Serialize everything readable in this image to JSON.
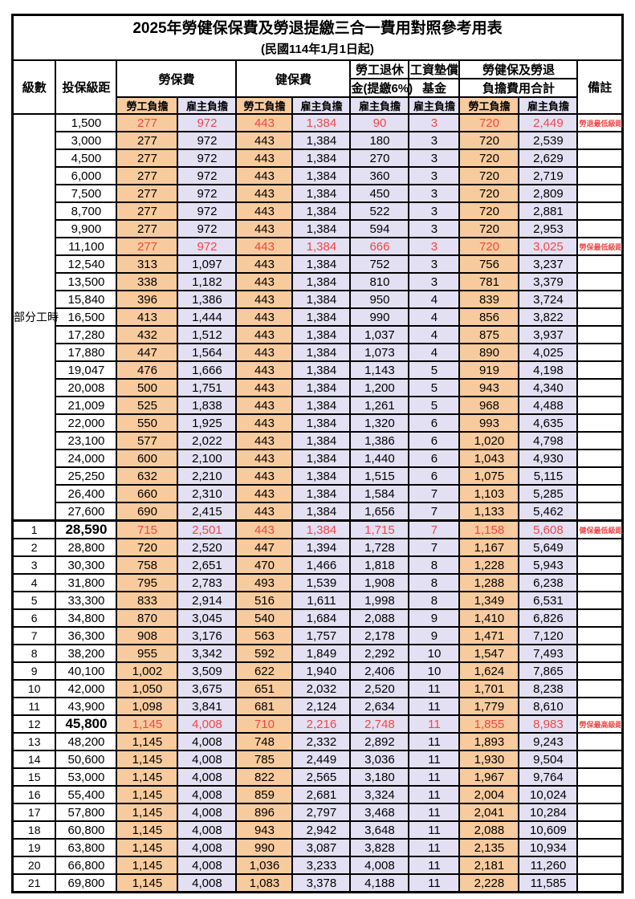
{
  "title": {
    "line1": "2025年勞健保保費及勞退提繳三合一費用對照參考用表",
    "line2": "(民國114年1月1日起)"
  },
  "colors": {
    "employee_column_bg": "#F7CB9E",
    "employer_column_bg": "#E2E0F2",
    "highlight_text": "#F24646",
    "border": "#000000"
  },
  "header": {
    "level": "級數",
    "salary_bracket": "投保級距",
    "labor_insurance_group": "勞保費",
    "health_insurance_group": "健保費",
    "pension_line1": "勞工退休",
    "pension_line2": "金(提繳6%)",
    "wage_fund_line1": "工資墊償",
    "wage_fund_line2": "基金",
    "total_line1": "勞健保及勞退",
    "total_line2": "負擔費用合計",
    "employee_share": "勞工負擔",
    "employer_share": "雇主負擔",
    "remarks": "備註"
  },
  "part_time_label": "部分工時",
  "part_time_rowspan": 23,
  "rows": [
    {
      "level": "",
      "salary": "1,500",
      "cells": [
        "277",
        "972",
        "443",
        "1,384",
        "90",
        "3",
        "720",
        "2,449"
      ],
      "remark": "勞退最低級距",
      "highlight": true,
      "bold_salary": false
    },
    {
      "level": "",
      "salary": "3,000",
      "cells": [
        "277",
        "972",
        "443",
        "1,384",
        "180",
        "3",
        "720",
        "2,539"
      ],
      "remark": "",
      "highlight": false,
      "bold_salary": false
    },
    {
      "level": "",
      "salary": "4,500",
      "cells": [
        "277",
        "972",
        "443",
        "1,384",
        "270",
        "3",
        "720",
        "2,629"
      ],
      "remark": "",
      "highlight": false,
      "bold_salary": false
    },
    {
      "level": "",
      "salary": "6,000",
      "cells": [
        "277",
        "972",
        "443",
        "1,384",
        "360",
        "3",
        "720",
        "2,719"
      ],
      "remark": "",
      "highlight": false,
      "bold_salary": false
    },
    {
      "level": "",
      "salary": "7,500",
      "cells": [
        "277",
        "972",
        "443",
        "1,384",
        "450",
        "3",
        "720",
        "2,809"
      ],
      "remark": "",
      "highlight": false,
      "bold_salary": false
    },
    {
      "level": "",
      "salary": "8,700",
      "cells": [
        "277",
        "972",
        "443",
        "1,384",
        "522",
        "3",
        "720",
        "2,881"
      ],
      "remark": "",
      "highlight": false,
      "bold_salary": false
    },
    {
      "level": "",
      "salary": "9,900",
      "cells": [
        "277",
        "972",
        "443",
        "1,384",
        "594",
        "3",
        "720",
        "2,953"
      ],
      "remark": "",
      "highlight": false,
      "bold_salary": false
    },
    {
      "level": "",
      "salary": "11,100",
      "cells": [
        "277",
        "972",
        "443",
        "1,384",
        "666",
        "3",
        "720",
        "3,025"
      ],
      "remark": "勞保最低級距",
      "highlight": true,
      "bold_salary": false
    },
    {
      "level": "",
      "salary": "12,540",
      "cells": [
        "313",
        "1,097",
        "443",
        "1,384",
        "752",
        "3",
        "756",
        "3,237"
      ],
      "remark": "",
      "highlight": false,
      "bold_salary": false
    },
    {
      "level": "",
      "salary": "13,500",
      "cells": [
        "338",
        "1,182",
        "443",
        "1,384",
        "810",
        "3",
        "781",
        "3,379"
      ],
      "remark": "",
      "highlight": false,
      "bold_salary": false
    },
    {
      "level": "",
      "salary": "15,840",
      "cells": [
        "396",
        "1,386",
        "443",
        "1,384",
        "950",
        "4",
        "839",
        "3,724"
      ],
      "remark": "",
      "highlight": false,
      "bold_salary": false
    },
    {
      "level": "",
      "salary": "16,500",
      "cells": [
        "413",
        "1,444",
        "443",
        "1,384",
        "990",
        "4",
        "856",
        "3,822"
      ],
      "remark": "",
      "highlight": false,
      "bold_salary": false
    },
    {
      "level": "",
      "salary": "17,280",
      "cells": [
        "432",
        "1,512",
        "443",
        "1,384",
        "1,037",
        "4",
        "875",
        "3,937"
      ],
      "remark": "",
      "highlight": false,
      "bold_salary": false
    },
    {
      "level": "",
      "salary": "17,880",
      "cells": [
        "447",
        "1,564",
        "443",
        "1,384",
        "1,073",
        "4",
        "890",
        "4,025"
      ],
      "remark": "",
      "highlight": false,
      "bold_salary": false
    },
    {
      "level": "",
      "salary": "19,047",
      "cells": [
        "476",
        "1,666",
        "443",
        "1,384",
        "1,143",
        "5",
        "919",
        "4,198"
      ],
      "remark": "",
      "highlight": false,
      "bold_salary": false
    },
    {
      "level": "",
      "salary": "20,008",
      "cells": [
        "500",
        "1,751",
        "443",
        "1,384",
        "1,200",
        "5",
        "943",
        "4,340"
      ],
      "remark": "",
      "highlight": false,
      "bold_salary": false
    },
    {
      "level": "",
      "salary": "21,009",
      "cells": [
        "525",
        "1,838",
        "443",
        "1,384",
        "1,261",
        "5",
        "968",
        "4,488"
      ],
      "remark": "",
      "highlight": false,
      "bold_salary": false
    },
    {
      "level": "",
      "salary": "22,000",
      "cells": [
        "550",
        "1,925",
        "443",
        "1,384",
        "1,320",
        "6",
        "993",
        "4,635"
      ],
      "remark": "",
      "highlight": false,
      "bold_salary": false
    },
    {
      "level": "",
      "salary": "23,100",
      "cells": [
        "577",
        "2,022",
        "443",
        "1,384",
        "1,386",
        "6",
        "1,020",
        "4,798"
      ],
      "remark": "",
      "highlight": false,
      "bold_salary": false
    },
    {
      "level": "",
      "salary": "24,000",
      "cells": [
        "600",
        "2,100",
        "443",
        "1,384",
        "1,440",
        "6",
        "1,043",
        "4,930"
      ],
      "remark": "",
      "highlight": false,
      "bold_salary": false
    },
    {
      "level": "",
      "salary": "25,250",
      "cells": [
        "632",
        "2,210",
        "443",
        "1,384",
        "1,515",
        "6",
        "1,075",
        "5,115"
      ],
      "remark": "",
      "highlight": false,
      "bold_salary": false
    },
    {
      "level": "",
      "salary": "26,400",
      "cells": [
        "660",
        "2,310",
        "443",
        "1,384",
        "1,584",
        "7",
        "1,103",
        "5,285"
      ],
      "remark": "",
      "highlight": false,
      "bold_salary": false
    },
    {
      "level": "",
      "salary": "27,600",
      "cells": [
        "690",
        "2,415",
        "443",
        "1,384",
        "1,656",
        "7",
        "1,133",
        "5,462"
      ],
      "remark": "",
      "highlight": false,
      "bold_salary": false
    },
    {
      "level": "1",
      "salary": "28,590",
      "cells": [
        "715",
        "2,501",
        "443",
        "1,384",
        "1,715",
        "7",
        "1,158",
        "5,608"
      ],
      "remark": "健保最低級距",
      "highlight": true,
      "bold_salary": true
    },
    {
      "level": "2",
      "salary": "28,800",
      "cells": [
        "720",
        "2,520",
        "447",
        "1,394",
        "1,728",
        "7",
        "1,167",
        "5,649"
      ],
      "remark": "",
      "highlight": false,
      "bold_salary": false
    },
    {
      "level": "3",
      "salary": "30,300",
      "cells": [
        "758",
        "2,651",
        "470",
        "1,466",
        "1,818",
        "8",
        "1,228",
        "5,943"
      ],
      "remark": "",
      "highlight": false,
      "bold_salary": false
    },
    {
      "level": "4",
      "salary": "31,800",
      "cells": [
        "795",
        "2,783",
        "493",
        "1,539",
        "1,908",
        "8",
        "1,288",
        "6,238"
      ],
      "remark": "",
      "highlight": false,
      "bold_salary": false
    },
    {
      "level": "5",
      "salary": "33,300",
      "cells": [
        "833",
        "2,914",
        "516",
        "1,611",
        "1,998",
        "8",
        "1,349",
        "6,531"
      ],
      "remark": "",
      "highlight": false,
      "bold_salary": false
    },
    {
      "level": "6",
      "salary": "34,800",
      "cells": [
        "870",
        "3,045",
        "540",
        "1,684",
        "2,088",
        "9",
        "1,410",
        "6,826"
      ],
      "remark": "",
      "highlight": false,
      "bold_salary": false
    },
    {
      "level": "7",
      "salary": "36,300",
      "cells": [
        "908",
        "3,176",
        "563",
        "1,757",
        "2,178",
        "9",
        "1,471",
        "7,120"
      ],
      "remark": "",
      "highlight": false,
      "bold_salary": false
    },
    {
      "level": "8",
      "salary": "38,200",
      "cells": [
        "955",
        "3,342",
        "592",
        "1,849",
        "2,292",
        "10",
        "1,547",
        "7,493"
      ],
      "remark": "",
      "highlight": false,
      "bold_salary": false
    },
    {
      "level": "9",
      "salary": "40,100",
      "cells": [
        "1,002",
        "3,509",
        "622",
        "1,940",
        "2,406",
        "10",
        "1,624",
        "7,865"
      ],
      "remark": "",
      "highlight": false,
      "bold_salary": false
    },
    {
      "level": "10",
      "salary": "42,000",
      "cells": [
        "1,050",
        "3,675",
        "651",
        "2,032",
        "2,520",
        "11",
        "1,701",
        "8,238"
      ],
      "remark": "",
      "highlight": false,
      "bold_salary": false
    },
    {
      "level": "11",
      "salary": "43,900",
      "cells": [
        "1,098",
        "3,841",
        "681",
        "2,124",
        "2,634",
        "11",
        "1,779",
        "8,610"
      ],
      "remark": "",
      "highlight": false,
      "bold_salary": false
    },
    {
      "level": "12",
      "salary": "45,800",
      "cells": [
        "1,145",
        "4,008",
        "710",
        "2,216",
        "2,748",
        "11",
        "1,855",
        "8,983"
      ],
      "remark": "勞保最高級距",
      "highlight": true,
      "bold_salary": true
    },
    {
      "level": "13",
      "salary": "48,200",
      "cells": [
        "1,145",
        "4,008",
        "748",
        "2,332",
        "2,892",
        "11",
        "1,893",
        "9,243"
      ],
      "remark": "",
      "highlight": false,
      "bold_salary": false
    },
    {
      "level": "14",
      "salary": "50,600",
      "cells": [
        "1,145",
        "4,008",
        "785",
        "2,449",
        "3,036",
        "11",
        "1,930",
        "9,504"
      ],
      "remark": "",
      "highlight": false,
      "bold_salary": false
    },
    {
      "level": "15",
      "salary": "53,000",
      "cells": [
        "1,145",
        "4,008",
        "822",
        "2,565",
        "3,180",
        "11",
        "1,967",
        "9,764"
      ],
      "remark": "",
      "highlight": false,
      "bold_salary": false
    },
    {
      "level": "16",
      "salary": "55,400",
      "cells": [
        "1,145",
        "4,008",
        "859",
        "2,681",
        "3,324",
        "11",
        "2,004",
        "10,024"
      ],
      "remark": "",
      "highlight": false,
      "bold_salary": false
    },
    {
      "level": "17",
      "salary": "57,800",
      "cells": [
        "1,145",
        "4,008",
        "896",
        "2,797",
        "3,468",
        "11",
        "2,041",
        "10,284"
      ],
      "remark": "",
      "highlight": false,
      "bold_salary": false
    },
    {
      "level": "18",
      "salary": "60,800",
      "cells": [
        "1,145",
        "4,008",
        "943",
        "2,942",
        "3,648",
        "11",
        "2,088",
        "10,609"
      ],
      "remark": "",
      "highlight": false,
      "bold_salary": false
    },
    {
      "level": "19",
      "salary": "63,800",
      "cells": [
        "1,145",
        "4,008",
        "990",
        "3,087",
        "3,828",
        "11",
        "2,135",
        "10,934"
      ],
      "remark": "",
      "highlight": false,
      "bold_salary": false
    },
    {
      "level": "20",
      "salary": "66,800",
      "cells": [
        "1,145",
        "4,008",
        "1,036",
        "3,233",
        "4,008",
        "11",
        "2,181",
        "11,260"
      ],
      "remark": "",
      "highlight": false,
      "bold_salary": false
    },
    {
      "level": "21",
      "salary": "69,800",
      "cells": [
        "1,145",
        "4,008",
        "1,083",
        "3,378",
        "4,188",
        "11",
        "2,228",
        "11,585"
      ],
      "remark": "",
      "highlight": false,
      "bold_salary": false
    }
  ]
}
